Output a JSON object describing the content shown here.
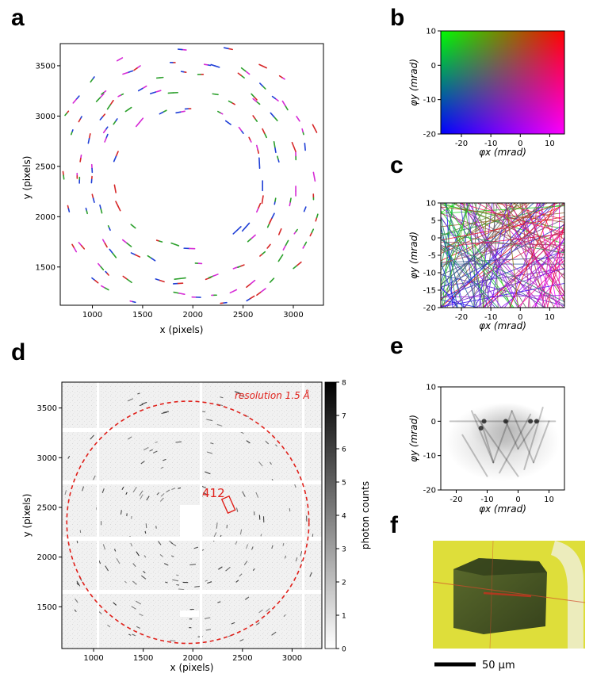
{
  "panel_letters": [
    "a",
    "b",
    "c",
    "d",
    "e",
    "f"
  ],
  "chart_data": [
    {
      "panel": "a",
      "type": "scatter",
      "title": "",
      "xlabel": "x (pixels)",
      "ylabel": "y (pixels)",
      "xlim": [
        680,
        3300
      ],
      "ylim": [
        1120,
        3720
      ],
      "xticks": [
        1000,
        1500,
        2000,
        2500,
        3000
      ],
      "yticks": [
        1500,
        2000,
        2500,
        3000,
        3500
      ],
      "series": [
        {
          "name": "color-coded streaks (red/green/blue/magenta)",
          "values": []
        }
      ]
    },
    {
      "panel": "b",
      "type": "heatmap",
      "xlabel": "φx (mrad)",
      "ylabel": "φy (mrad)",
      "xlim": [
        -27,
        15
      ],
      "ylim": [
        -20,
        10
      ],
      "xticks": [
        -20,
        -10,
        0,
        10
      ],
      "yticks": [
        -20,
        -10,
        0,
        10
      ],
      "corner_colors": {
        "top_left": "#00ff00",
        "top_right": "#ff0000",
        "bottom_left": "#0000ff",
        "bottom_right": "#ff00ff"
      }
    },
    {
      "panel": "c",
      "type": "line",
      "xlabel": "φx (mrad)",
      "ylabel": "φy (mrad)",
      "xlim": [
        -27,
        15
      ],
      "ylim": [
        -20,
        10
      ],
      "xticks": [
        -20,
        -10,
        0,
        10
      ],
      "yticks": [
        -20,
        -15,
        -10,
        -5,
        0,
        5,
        10
      ]
    },
    {
      "panel": "d",
      "type": "heatmap",
      "xlabel": "x (pixels)",
      "ylabel": "y (pixels)",
      "xlim": [
        680,
        3300
      ],
      "ylim": [
        1080,
        3760
      ],
      "xticks": [
        1000,
        1500,
        2000,
        2500,
        3000
      ],
      "yticks": [
        1500,
        2000,
        2500,
        3000,
        3500
      ],
      "annotation_resolution": "resolution 1.5 Å",
      "annotation_spot": "412",
      "resolution_circle": {
        "center_x": 1950,
        "center_y": 2350,
        "radius": 1220
      },
      "colorbar": {
        "label": "photon counts",
        "min": 0,
        "max": 8,
        "ticks": [
          0,
          1,
          2,
          3,
          4,
          5,
          6,
          7,
          8
        ]
      }
    },
    {
      "panel": "e",
      "type": "heatmap",
      "xlabel": "φx (mrad)",
      "ylabel": "φy (mrad)",
      "xlim": [
        -25,
        15
      ],
      "ylim": [
        -20,
        10
      ],
      "xticks": [
        -20,
        -10,
        0,
        10
      ],
      "yticks": [
        -20,
        -10,
        0,
        10
      ]
    }
  ],
  "panel_f": {
    "scale_bar_label": "50 µm",
    "colors": {
      "background": "#dede3a",
      "crystal": "#4a5a28"
    }
  }
}
